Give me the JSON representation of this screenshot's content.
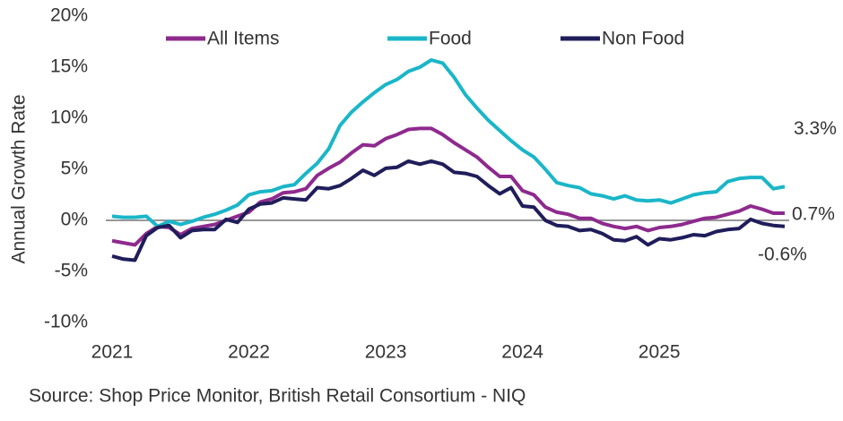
{
  "chart_data": {
    "type": "line",
    "y_label": "Annual Growth Rate",
    "source": "Source: Shop Price Monitor, British Retail Consortium - NIQ",
    "categories": [
      "2021",
      null,
      null,
      null,
      null,
      null,
      null,
      null,
      null,
      null,
      null,
      null,
      "2022",
      null,
      null,
      null,
      null,
      null,
      null,
      null,
      null,
      null,
      null,
      null,
      "2023",
      null,
      null,
      null,
      null,
      null,
      null,
      null,
      null,
      null,
      null,
      null,
      "2024",
      null,
      null,
      null,
      null,
      null,
      null,
      null,
      null,
      null,
      null,
      null,
      "2025",
      null,
      null,
      null,
      null,
      null,
      null,
      null,
      null,
      null,
      null,
      null
    ],
    "series": [
      {
        "name": "All Items",
        "color": "#8e2a8e",
        "values": [
          -2.0,
          -2.2,
          -2.4,
          -1.3,
          -0.6,
          -0.7,
          -1.4,
          -0.8,
          -0.6,
          -0.4,
          0.0,
          0.4,
          0.8,
          1.8,
          2.1,
          2.7,
          2.8,
          3.1,
          4.4,
          5.1,
          5.7,
          6.6,
          7.4,
          7.3,
          8.0,
          8.4,
          8.9,
          9.0,
          9.0,
          8.4,
          7.6,
          6.9,
          6.2,
          5.2,
          4.3,
          4.3,
          2.9,
          2.5,
          1.3,
          0.8,
          0.6,
          0.2,
          0.2,
          -0.3,
          -0.6,
          -0.8,
          -0.6,
          -1.0,
          -0.7,
          -0.6,
          -0.4,
          -0.1,
          0.2,
          0.3,
          0.6,
          0.9,
          1.4,
          1.1,
          0.7,
          0.7
        ],
        "value_labels": [
          null,
          null,
          null,
          null,
          null,
          null,
          null,
          null,
          null,
          null,
          null,
          null,
          null,
          null,
          null,
          null,
          null,
          null,
          null,
          null,
          null,
          null,
          null,
          null,
          null,
          null,
          null,
          null,
          null,
          null,
          null,
          null,
          null,
          null,
          null,
          null,
          null,
          null,
          null,
          null,
          null,
          null,
          null,
          null,
          null,
          null,
          null,
          null,
          null,
          null,
          null,
          null,
          null,
          null,
          null,
          null,
          null,
          null,
          null,
          "0.7%"
        ]
      },
      {
        "name": "Food",
        "color": "#1ab6c8",
        "values": [
          0.4,
          0.3,
          0.3,
          0.4,
          -0.6,
          -0.1,
          -0.4,
          -0.1,
          0.3,
          0.6,
          1.0,
          1.5,
          2.5,
          2.8,
          2.9,
          3.3,
          3.5,
          4.6,
          5.6,
          7.0,
          9.3,
          10.6,
          11.6,
          12.5,
          13.3,
          13.8,
          14.6,
          15.0,
          15.7,
          15.4,
          14.0,
          12.3,
          11.0,
          9.8,
          8.8,
          7.8,
          6.9,
          6.2,
          5.0,
          3.7,
          3.4,
          3.2,
          2.6,
          2.4,
          2.1,
          2.4,
          2.0,
          1.9,
          2.0,
          1.7,
          2.1,
          2.5,
          2.7,
          2.8,
          3.8,
          4.1,
          4.2,
          4.2,
          3.1,
          3.3
        ],
        "value_labels": [
          null,
          null,
          null,
          null,
          null,
          null,
          null,
          null,
          null,
          null,
          null,
          null,
          null,
          null,
          null,
          null,
          null,
          null,
          null,
          null,
          null,
          null,
          null,
          null,
          null,
          null,
          null,
          null,
          null,
          null,
          null,
          null,
          null,
          null,
          null,
          null,
          null,
          null,
          null,
          null,
          null,
          null,
          null,
          null,
          null,
          null,
          null,
          null,
          null,
          null,
          null,
          null,
          null,
          null,
          null,
          null,
          null,
          null,
          null,
          "3.3%"
        ]
      },
      {
        "name": "Non Food",
        "color": "#1f1d5a",
        "values": [
          -3.5,
          -3.8,
          -3.9,
          -1.5,
          -0.7,
          -0.5,
          -1.7,
          -1.0,
          -0.9,
          -0.9,
          0.1,
          -0.2,
          1.1,
          1.6,
          1.7,
          2.2,
          2.1,
          2.0,
          3.2,
          3.1,
          3.4,
          4.1,
          4.9,
          4.4,
          5.1,
          5.2,
          5.8,
          5.5,
          5.8,
          5.5,
          4.7,
          4.6,
          4.3,
          3.4,
          2.6,
          3.2,
          1.4,
          1.3,
          0.0,
          -0.5,
          -0.6,
          -1.0,
          -0.9,
          -1.3,
          -1.9,
          -2.0,
          -1.6,
          -2.4,
          -1.8,
          -1.9,
          -1.7,
          -1.4,
          -1.5,
          -1.1,
          -0.9,
          -0.8,
          0.1,
          -0.3,
          -0.5,
          -0.6
        ],
        "value_labels": [
          null,
          null,
          null,
          null,
          null,
          null,
          null,
          null,
          null,
          null,
          null,
          null,
          null,
          null,
          null,
          null,
          null,
          null,
          null,
          null,
          null,
          null,
          null,
          null,
          null,
          null,
          null,
          null,
          null,
          null,
          null,
          null,
          null,
          null,
          null,
          null,
          null,
          null,
          null,
          null,
          null,
          null,
          null,
          null,
          null,
          null,
          null,
          null,
          null,
          null,
          null,
          null,
          null,
          null,
          null,
          null,
          null,
          null,
          null,
          "-0.6%"
        ]
      }
    ],
    "ylim": [
      -10,
      20
    ],
    "yticks": [
      {
        "value": -10,
        "label": "-10%"
      },
      {
        "value": -5,
        "label": "-5%"
      },
      {
        "value": 0,
        "label": "0%"
      },
      {
        "value": 5,
        "label": "5%"
      },
      {
        "value": 10,
        "label": "10%"
      },
      {
        "value": 15,
        "label": "15%"
      },
      {
        "value": 20,
        "label": "20%"
      }
    ],
    "grid": false,
    "legend": "top"
  }
}
